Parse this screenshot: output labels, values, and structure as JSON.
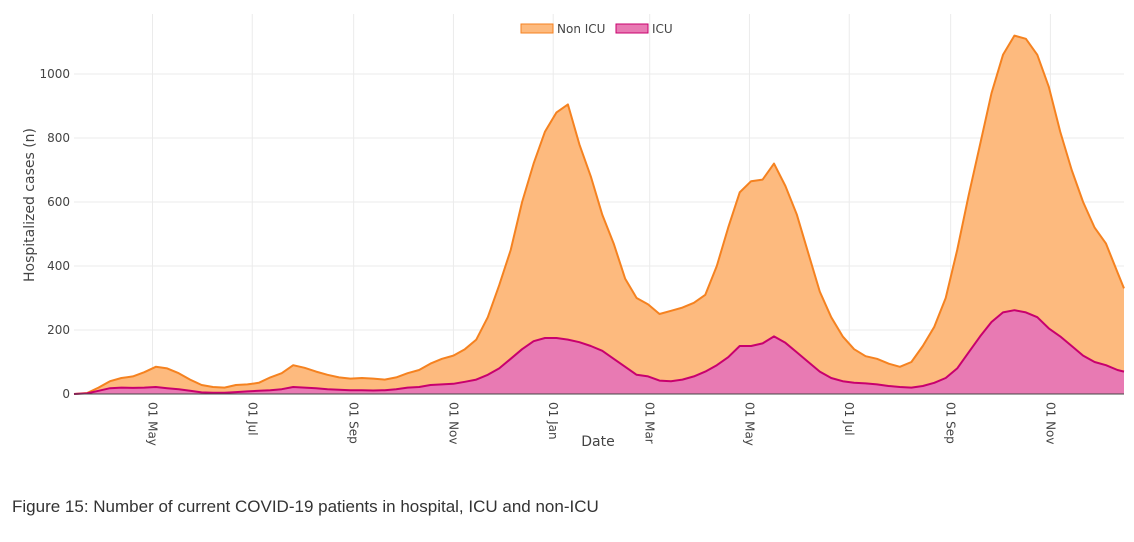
{
  "caption": "Figure 15: Number of current COVID-19 patients in hospital, ICU and non-ICU",
  "colors": {
    "non_icu_line": "#F58220",
    "non_icu_fill": "#FDBA7E",
    "icu_line": "#C8006E",
    "icu_fill": "#E87AB3",
    "grid": "#EBEBEB",
    "axis": "#444444"
  },
  "chart_data": {
    "type": "area",
    "title": "",
    "xlabel": "Date",
    "ylabel": "Hospitalized cases (n)",
    "ylim": [
      0,
      1100
    ],
    "xlim": [
      "2020-03-14",
      "2021-12-16"
    ],
    "grid": true,
    "legend_position": "top-center",
    "y_ticks": [
      0,
      200,
      400,
      600,
      800,
      1000
    ],
    "x_ticks": [
      {
        "date": "2020-05-01",
        "label": "01 May"
      },
      {
        "date": "2020-07-01",
        "label": "01 Jul"
      },
      {
        "date": "2020-09-01",
        "label": "01 Sep"
      },
      {
        "date": "2020-11-01",
        "label": "01 Nov"
      },
      {
        "date": "2021-01-01",
        "label": "01 Jan"
      },
      {
        "date": "2021-03-01",
        "label": "01 Mar"
      },
      {
        "date": "2021-05-01",
        "label": "01 May"
      },
      {
        "date": "2021-07-01",
        "label": "01 Jul"
      },
      {
        "date": "2021-09-01",
        "label": "01 Sep"
      },
      {
        "date": "2021-11-01",
        "label": "01 Nov"
      }
    ],
    "series": [
      {
        "name": "Non ICU",
        "points": [
          [
            "2020-03-14",
            0
          ],
          [
            "2020-03-22",
            3
          ],
          [
            "2020-03-29",
            20
          ],
          [
            "2020-04-05",
            40
          ],
          [
            "2020-04-12",
            50
          ],
          [
            "2020-04-19",
            55
          ],
          [
            "2020-04-26",
            68
          ],
          [
            "2020-05-03",
            85
          ],
          [
            "2020-05-10",
            80
          ],
          [
            "2020-05-17",
            65
          ],
          [
            "2020-05-24",
            45
          ],
          [
            "2020-05-31",
            28
          ],
          [
            "2020-06-07",
            22
          ],
          [
            "2020-06-14",
            20
          ],
          [
            "2020-06-21",
            28
          ],
          [
            "2020-06-28",
            30
          ],
          [
            "2020-07-05",
            35
          ],
          [
            "2020-07-12",
            52
          ],
          [
            "2020-07-19",
            65
          ],
          [
            "2020-07-26",
            90
          ],
          [
            "2020-08-02",
            82
          ],
          [
            "2020-08-09",
            70
          ],
          [
            "2020-08-16",
            60
          ],
          [
            "2020-08-23",
            52
          ],
          [
            "2020-08-30",
            48
          ],
          [
            "2020-09-06",
            50
          ],
          [
            "2020-09-13",
            48
          ],
          [
            "2020-09-20",
            45
          ],
          [
            "2020-09-27",
            52
          ],
          [
            "2020-10-04",
            65
          ],
          [
            "2020-10-11",
            75
          ],
          [
            "2020-10-18",
            95
          ],
          [
            "2020-10-25",
            110
          ],
          [
            "2020-11-01",
            120
          ],
          [
            "2020-11-08",
            140
          ],
          [
            "2020-11-15",
            170
          ],
          [
            "2020-11-22",
            240
          ],
          [
            "2020-11-29",
            340
          ],
          [
            "2020-12-06",
            450
          ],
          [
            "2020-12-13",
            600
          ],
          [
            "2020-12-20",
            720
          ],
          [
            "2020-12-27",
            820
          ],
          [
            "2021-01-03",
            880
          ],
          [
            "2021-01-10",
            905
          ],
          [
            "2021-01-17",
            780
          ],
          [
            "2021-01-24",
            680
          ],
          [
            "2021-01-31",
            560
          ],
          [
            "2021-02-07",
            470
          ],
          [
            "2021-02-14",
            360
          ],
          [
            "2021-02-21",
            300
          ],
          [
            "2021-02-28",
            280
          ],
          [
            "2021-03-07",
            250
          ],
          [
            "2021-03-14",
            260
          ],
          [
            "2021-03-21",
            270
          ],
          [
            "2021-03-28",
            285
          ],
          [
            "2021-04-04",
            310
          ],
          [
            "2021-04-11",
            400
          ],
          [
            "2021-04-18",
            520
          ],
          [
            "2021-04-25",
            630
          ],
          [
            "2021-05-02",
            665
          ],
          [
            "2021-05-09",
            670
          ],
          [
            "2021-05-16",
            720
          ],
          [
            "2021-05-23",
            650
          ],
          [
            "2021-05-30",
            560
          ],
          [
            "2021-06-06",
            440
          ],
          [
            "2021-06-13",
            320
          ],
          [
            "2021-06-20",
            240
          ],
          [
            "2021-06-27",
            180
          ],
          [
            "2021-07-04",
            140
          ],
          [
            "2021-07-11",
            118
          ],
          [
            "2021-07-18",
            110
          ],
          [
            "2021-07-25",
            95
          ],
          [
            "2021-08-01",
            85
          ],
          [
            "2021-08-08",
            100
          ],
          [
            "2021-08-15",
            150
          ],
          [
            "2021-08-22",
            210
          ],
          [
            "2021-08-29",
            300
          ],
          [
            "2021-09-05",
            450
          ],
          [
            "2021-09-12",
            620
          ],
          [
            "2021-09-19",
            780
          ],
          [
            "2021-09-26",
            940
          ],
          [
            "2021-10-03",
            1060
          ],
          [
            "2021-10-10",
            1120
          ],
          [
            "2021-10-17",
            1110
          ],
          [
            "2021-10-24",
            1060
          ],
          [
            "2021-10-31",
            960
          ],
          [
            "2021-11-07",
            820
          ],
          [
            "2021-11-14",
            700
          ],
          [
            "2021-11-21",
            600
          ],
          [
            "2021-11-28",
            520
          ],
          [
            "2021-12-05",
            470
          ],
          [
            "2021-12-12",
            380
          ],
          [
            "2021-12-16",
            330
          ]
        ]
      },
      {
        "name": "ICU",
        "points": [
          [
            "2020-03-14",
            0
          ],
          [
            "2020-03-22",
            2
          ],
          [
            "2020-03-29",
            10
          ],
          [
            "2020-04-05",
            18
          ],
          [
            "2020-04-12",
            20
          ],
          [
            "2020-04-19",
            19
          ],
          [
            "2020-04-26",
            20
          ],
          [
            "2020-05-03",
            22
          ],
          [
            "2020-05-10",
            18
          ],
          [
            "2020-05-17",
            15
          ],
          [
            "2020-05-24",
            10
          ],
          [
            "2020-05-31",
            5
          ],
          [
            "2020-06-07",
            4
          ],
          [
            "2020-06-14",
            4
          ],
          [
            "2020-06-21",
            6
          ],
          [
            "2020-06-28",
            8
          ],
          [
            "2020-07-05",
            10
          ],
          [
            "2020-07-12",
            12
          ],
          [
            "2020-07-19",
            15
          ],
          [
            "2020-07-26",
            22
          ],
          [
            "2020-08-02",
            20
          ],
          [
            "2020-08-09",
            18
          ],
          [
            "2020-08-16",
            15
          ],
          [
            "2020-08-23",
            13
          ],
          [
            "2020-08-30",
            12
          ],
          [
            "2020-09-06",
            12
          ],
          [
            "2020-09-13",
            11
          ],
          [
            "2020-09-20",
            12
          ],
          [
            "2020-09-27",
            15
          ],
          [
            "2020-10-04",
            20
          ],
          [
            "2020-10-11",
            22
          ],
          [
            "2020-10-18",
            28
          ],
          [
            "2020-10-25",
            30
          ],
          [
            "2020-11-01",
            32
          ],
          [
            "2020-11-08",
            38
          ],
          [
            "2020-11-15",
            45
          ],
          [
            "2020-11-22",
            60
          ],
          [
            "2020-11-29",
            80
          ],
          [
            "2020-12-06",
            110
          ],
          [
            "2020-12-13",
            140
          ],
          [
            "2020-12-20",
            165
          ],
          [
            "2020-12-27",
            175
          ],
          [
            "2021-01-03",
            175
          ],
          [
            "2021-01-10",
            170
          ],
          [
            "2021-01-17",
            162
          ],
          [
            "2021-01-24",
            150
          ],
          [
            "2021-01-31",
            135
          ],
          [
            "2021-02-07",
            110
          ],
          [
            "2021-02-14",
            85
          ],
          [
            "2021-02-21",
            60
          ],
          [
            "2021-02-28",
            55
          ],
          [
            "2021-03-07",
            42
          ],
          [
            "2021-03-14",
            40
          ],
          [
            "2021-03-21",
            45
          ],
          [
            "2021-03-28",
            55
          ],
          [
            "2021-04-04",
            70
          ],
          [
            "2021-04-11",
            90
          ],
          [
            "2021-04-18",
            115
          ],
          [
            "2021-04-25",
            150
          ],
          [
            "2021-05-02",
            150
          ],
          [
            "2021-05-09",
            158
          ],
          [
            "2021-05-16",
            180
          ],
          [
            "2021-05-23",
            160
          ],
          [
            "2021-05-30",
            130
          ],
          [
            "2021-06-06",
            100
          ],
          [
            "2021-06-13",
            70
          ],
          [
            "2021-06-20",
            50
          ],
          [
            "2021-06-27",
            40
          ],
          [
            "2021-07-04",
            35
          ],
          [
            "2021-07-11",
            33
          ],
          [
            "2021-07-18",
            30
          ],
          [
            "2021-07-25",
            25
          ],
          [
            "2021-08-01",
            22
          ],
          [
            "2021-08-08",
            20
          ],
          [
            "2021-08-15",
            25
          ],
          [
            "2021-08-22",
            35
          ],
          [
            "2021-08-29",
            50
          ],
          [
            "2021-09-05",
            80
          ],
          [
            "2021-09-12",
            130
          ],
          [
            "2021-09-19",
            180
          ],
          [
            "2021-09-26",
            225
          ],
          [
            "2021-10-03",
            255
          ],
          [
            "2021-10-10",
            262
          ],
          [
            "2021-10-17",
            255
          ],
          [
            "2021-10-24",
            240
          ],
          [
            "2021-10-31",
            205
          ],
          [
            "2021-11-07",
            180
          ],
          [
            "2021-11-14",
            150
          ],
          [
            "2021-11-21",
            120
          ],
          [
            "2021-11-28",
            100
          ],
          [
            "2021-12-05",
            90
          ],
          [
            "2021-12-12",
            75
          ],
          [
            "2021-12-16",
            70
          ]
        ]
      }
    ]
  }
}
